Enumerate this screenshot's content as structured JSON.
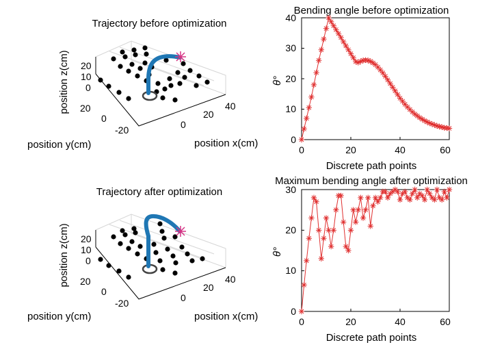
{
  "figure": {
    "panels": {
      "top_left": {
        "title": "Trajectory before optimization",
        "xlabel": "position x(cm)",
        "ylabel": "position y(cm)",
        "zlabel": "position z(cm)",
        "x_ticks": [
          "0",
          "20",
          "40"
        ],
        "y_ticks": [
          "20",
          "0",
          "-20"
        ],
        "z_ticks": [
          "0",
          "10",
          "20"
        ]
      },
      "bottom_left": {
        "title": "Trajectory after optimization",
        "xlabel": "position x(cm)",
        "ylabel": "position y(cm)",
        "zlabel": "position z(cm)",
        "x_ticks": [
          "0",
          "20",
          "40"
        ],
        "y_ticks": [
          "20",
          "0",
          "-20"
        ],
        "z_ticks": [
          "0",
          "10",
          "20"
        ]
      }
    },
    "colors": {
      "trajectory": "#1f77b4",
      "series": "#e03030",
      "target_marker": "#d63384",
      "obstacles": "#000000",
      "start_ring": "#444444"
    }
  },
  "chart_data": [
    {
      "type": "line",
      "title": "Bending angle before optimization",
      "xlabel": "Discrete path points",
      "ylabel": "θ°",
      "xlim": [
        0,
        60
      ],
      "ylim": [
        0,
        40
      ],
      "xticks": [
        "0",
        "20",
        "40",
        "60"
      ],
      "yticks": [
        "0",
        "10",
        "20",
        "30",
        "40"
      ],
      "marker": "asterisk",
      "series": [
        {
          "x": [
            0,
            1,
            2,
            3,
            4,
            5,
            6,
            7,
            8,
            9,
            10,
            11,
            12,
            13,
            14,
            15,
            16,
            17,
            18,
            19,
            20,
            21,
            22,
            23,
            24,
            25,
            26,
            27,
            28,
            29,
            30,
            31,
            32,
            33,
            34,
            35,
            36,
            37,
            38,
            39,
            40,
            41,
            42,
            43,
            44,
            45,
            46,
            47,
            48,
            49,
            50,
            51,
            52,
            53,
            54,
            55,
            56,
            57,
            58,
            59,
            60
          ],
          "values": [
            0,
            3.5,
            7,
            10.5,
            14,
            18,
            22,
            26,
            29.5,
            33,
            36.5,
            40,
            38.7,
            37.4,
            36.1,
            34.8,
            33.5,
            32.1,
            30.8,
            29.5,
            28.2,
            26.9,
            25.6,
            25.3,
            25.7,
            26,
            26.1,
            26,
            25.7,
            25.2,
            24.6,
            23.8,
            22.9,
            21.9,
            20.8,
            19.6,
            18.4,
            17.2,
            16,
            14.8,
            13.6,
            12.6,
            11.6,
            10.7,
            9.9,
            9.1,
            8.4,
            7.8,
            7.2,
            6.7,
            6.2,
            5.8,
            5.4,
            5.1,
            4.8,
            4.5,
            4.3,
            4.1,
            3.9,
            3.8,
            3.7
          ]
        }
      ]
    },
    {
      "type": "line",
      "title": "Maximum bending angle after optimization",
      "xlabel": "Discrete path points",
      "ylabel": "θ°",
      "xlim": [
        0,
        60
      ],
      "ylim": [
        0,
        30
      ],
      "xticks": [
        "0",
        "20",
        "40",
        "60"
      ],
      "yticks": [
        "0",
        "10",
        "20",
        "30"
      ],
      "marker": "asterisk",
      "series": [
        {
          "x": [
            0,
            1,
            2,
            3,
            4,
            5,
            6,
            7,
            8,
            9,
            10,
            11,
            12,
            13,
            14,
            15,
            16,
            17,
            18,
            19,
            20,
            21,
            22,
            23,
            24,
            25,
            26,
            27,
            28,
            29,
            30,
            31,
            32,
            33,
            34,
            35,
            36,
            37,
            38,
            39,
            40,
            41,
            42,
            43,
            44,
            45,
            46,
            47,
            48,
            49,
            50,
            51,
            52,
            53,
            54,
            55,
            56,
            57,
            58,
            59,
            60
          ],
          "values": [
            0,
            6.5,
            12.5,
            18,
            23,
            28,
            27,
            20,
            13,
            18,
            23,
            20,
            16,
            20,
            25,
            28.5,
            28.5,
            22,
            16,
            15,
            20,
            25,
            22,
            25,
            28,
            23,
            25,
            28,
            21,
            26,
            28,
            27,
            28,
            29.5,
            29.5,
            28,
            29,
            29.5,
            30,
            29.5,
            27.5,
            29,
            29.5,
            28,
            27.5,
            29,
            30,
            28,
            29,
            28.5,
            27.5,
            30,
            29,
            28,
            27.5,
            30,
            28,
            27.5,
            29.5,
            28,
            30
          ]
        }
      ]
    }
  ]
}
